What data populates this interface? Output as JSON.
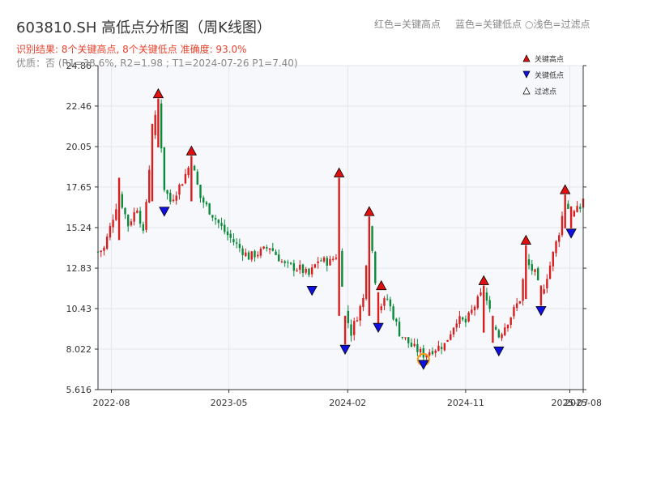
{
  "header": {
    "title": "603810.SH 高低点分析图（周K线图）",
    "hint_red": "红色=关键高点",
    "hint_blue": "蓝色=关键低点",
    "hint_light": "浅色=过滤点",
    "result": "识别结果: 8个关键高点, 8个关键低点   准确度: 93.0%",
    "quality": "优质：否  (R1=38.6%, R2=1.98 ; T1=2024-07-26 P1=7.40)"
  },
  "colors": {
    "up": "#d81e1e",
    "down": "#0a8a3a",
    "high_marker": "#e01010",
    "low_marker": "#1010e0",
    "filtered_marker": "#ffffff",
    "highlight_ring": "#f39c12",
    "plot_bg": "#f7f8fb",
    "grid": "#e3e6ec"
  },
  "chart_data": {
    "type": "candlestick",
    "title": "603810.SH 高低点分析图（周K线图）",
    "xlabel": "",
    "ylabel": "",
    "x_range": [
      "2022-07-01",
      "2025-08-01"
    ],
    "ylim": [
      5.616,
      24.86
    ],
    "y_ticks": [
      "5.616",
      "8.022",
      "10.43",
      "12.83",
      "15.24",
      "17.65",
      "20.05",
      "22.46",
      "24.86"
    ],
    "x_ticks": [
      {
        "date": "2022-08-01",
        "label": "2022-08"
      },
      {
        "date": "2023-05-01",
        "label": "2023-05"
      },
      {
        "date": "2024-02-01",
        "label": "2024-02"
      },
      {
        "date": "2024-11-01",
        "label": "2024-11"
      },
      {
        "date": "2025-07-01",
        "label": "2025-07"
      },
      {
        "date": "2025-08-01",
        "label": "2025-08"
      }
    ],
    "grid": true,
    "legend_position": "top-right",
    "legend": [
      {
        "label": "关键高点",
        "symbol": "triangle-up",
        "color": "#e01010"
      },
      {
        "label": "关键低点",
        "symbol": "triangle-down",
        "color": "#1010e0"
      },
      {
        "label": "过滤点",
        "symbol": "triangle-up-hollow",
        "color": "#ffffff"
      }
    ],
    "anchors": [
      [
        "2022-07-01",
        13.8
      ],
      [
        "2022-07-15",
        14.0
      ],
      [
        "2022-08-01",
        15.5
      ],
      [
        "2022-08-19",
        17.2
      ],
      [
        "2022-09-09",
        15.4
      ],
      [
        "2022-10-01",
        16.5
      ],
      [
        "2022-10-14",
        14.8
      ],
      [
        "2022-11-04",
        20.8
      ],
      [
        "2022-11-18",
        22.6
      ],
      [
        "2022-12-02",
        17.6
      ],
      [
        "2022-12-16",
        16.8
      ],
      [
        "2023-01-13",
        18.0
      ],
      [
        "2023-02-03",
        19.2
      ],
      [
        "2023-02-24",
        17.0
      ],
      [
        "2023-03-24",
        16.0
      ],
      [
        "2023-04-21",
        15.0
      ],
      [
        "2023-05-19",
        14.2
      ],
      [
        "2023-06-16",
        13.5
      ],
      [
        "2023-07-14",
        13.8
      ],
      [
        "2023-08-04",
        14.1
      ],
      [
        "2023-09-08",
        13.0
      ],
      [
        "2023-10-13",
        12.8
      ],
      [
        "2023-11-03",
        12.4
      ],
      [
        "2023-11-24",
        13.3
      ],
      [
        "2023-12-22",
        13.2
      ],
      [
        "2024-01-12",
        13.8
      ],
      [
        "2024-01-26",
        10.2
      ],
      [
        "2024-02-09",
        9.0
      ],
      [
        "2024-03-08",
        11.0
      ],
      [
        "2024-03-22",
        15.5
      ],
      [
        "2024-04-12",
        10.5
      ],
      [
        "2024-05-03",
        11.0
      ],
      [
        "2024-05-31",
        9.0
      ],
      [
        "2024-06-28",
        8.2
      ],
      [
        "2024-07-26",
        7.7
      ],
      [
        "2024-08-16",
        8.0
      ],
      [
        "2024-09-13",
        8.3
      ],
      [
        "2024-10-11",
        9.8
      ],
      [
        "2024-11-01",
        9.6
      ],
      [
        "2024-11-22",
        10.6
      ],
      [
        "2024-12-13",
        11.5
      ],
      [
        "2025-01-03",
        9.6
      ],
      [
        "2025-01-17",
        8.8
      ],
      [
        "2025-02-14",
        10.0
      ],
      [
        "2025-03-07",
        11.0
      ],
      [
        "2025-03-21",
        13.2
      ],
      [
        "2025-04-11",
        12.5
      ],
      [
        "2025-04-25",
        11.2
      ],
      [
        "2025-05-16",
        13.0
      ],
      [
        "2025-06-06",
        15.0
      ],
      [
        "2025-06-20",
        16.8
      ],
      [
        "2025-07-04",
        16.0
      ],
      [
        "2025-07-25",
        16.4
      ],
      [
        "2025-08-01",
        17.0
      ]
    ],
    "spikes": [
      [
        "2022-08-19",
        18.2,
        14.5
      ],
      [
        "2022-11-04",
        21.4,
        16.8
      ],
      [
        "2022-11-18",
        22.9,
        20.0
      ],
      [
        "2023-02-03",
        19.5,
        16.8
      ],
      [
        "2024-01-12",
        18.2,
        10.0
      ],
      [
        "2024-01-26",
        10.0,
        8.3
      ],
      [
        "2024-03-22",
        15.9,
        10.0
      ],
      [
        "2024-04-12",
        11.4,
        9.4
      ],
      [
        "2024-12-13",
        11.8,
        9.0
      ],
      [
        "2025-01-03",
        10.0,
        8.4
      ],
      [
        "2025-03-21",
        14.2,
        11.0
      ],
      [
        "2025-04-25",
        11.8,
        10.6
      ],
      [
        "2025-06-20",
        17.2,
        15.2
      ],
      [
        "2025-07-04",
        16.5,
        15.2
      ]
    ],
    "key_highs": [
      [
        "2022-11-18",
        22.9
      ],
      [
        "2023-02-03",
        19.5
      ],
      [
        "2024-01-12",
        18.2
      ],
      [
        "2024-03-22",
        15.9
      ],
      [
        "2024-04-19",
        11.5
      ],
      [
        "2024-12-13",
        11.8
      ],
      [
        "2025-03-21",
        14.2
      ],
      [
        "2025-06-20",
        17.2
      ]
    ],
    "key_lows": [
      [
        "2022-12-02",
        16.5
      ],
      [
        "2023-11-10",
        11.8
      ],
      [
        "2024-01-26",
        8.3
      ],
      [
        "2024-04-12",
        9.6
      ],
      [
        "2024-07-26",
        7.4
      ],
      [
        "2025-01-17",
        8.2
      ],
      [
        "2025-04-25",
        10.6
      ],
      [
        "2025-07-04",
        15.2
      ]
    ],
    "highlight": {
      "date": "2024-07-26",
      "value": 7.4
    }
  }
}
